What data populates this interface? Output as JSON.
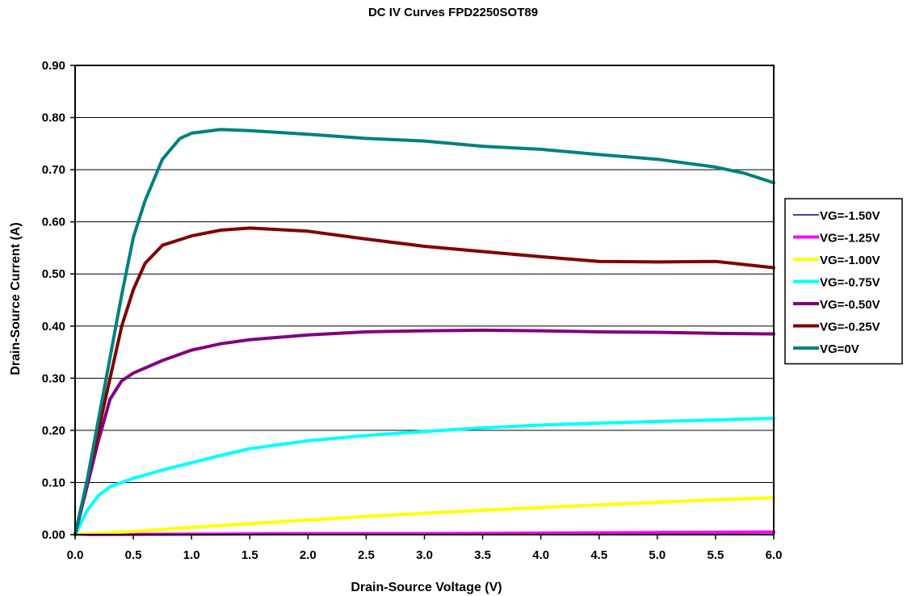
{
  "chart_data": {
    "type": "line",
    "title": "DC IV Curves FPD2250SOT89",
    "xlabel": "Drain-Source Voltage (V)",
    "ylabel": "Drain-Source Current (A)",
    "xlim": [
      0,
      6
    ],
    "ylim": [
      0,
      0.9
    ],
    "x_ticks": [
      "0.0",
      "0.5",
      "1.0",
      "1.5",
      "2.0",
      "2.5",
      "3.0",
      "3.5",
      "4.0",
      "4.5",
      "5.0",
      "5.5",
      "6.0"
    ],
    "y_ticks": [
      "0.00",
      "0.10",
      "0.20",
      "0.30",
      "0.40",
      "0.50",
      "0.60",
      "0.70",
      "0.80",
      "0.90"
    ],
    "grid": "horizontal",
    "legend_position": "right",
    "series": [
      {
        "name": "VG=-1.50V",
        "color": "#000080",
        "points": [
          [
            0,
            0
          ],
          [
            6,
            0
          ]
        ]
      },
      {
        "name": "VG=-1.25V",
        "color": "#ff00ff",
        "points": [
          [
            0,
            0
          ],
          [
            1,
            0.001
          ],
          [
            2,
            0.002
          ],
          [
            3,
            0.002
          ],
          [
            4,
            0.003
          ],
          [
            5,
            0.004
          ],
          [
            6,
            0.005
          ]
        ]
      },
      {
        "name": "VG=-1.00V",
        "color": "#ffff00",
        "points": [
          [
            0,
            0
          ],
          [
            0.5,
            0.006
          ],
          [
            1,
            0.014
          ],
          [
            1.5,
            0.021
          ],
          [
            2,
            0.028
          ],
          [
            2.5,
            0.035
          ],
          [
            3,
            0.041
          ],
          [
            3.5,
            0.047
          ],
          [
            4,
            0.052
          ],
          [
            4.5,
            0.057
          ],
          [
            5,
            0.062
          ],
          [
            5.5,
            0.067
          ],
          [
            6,
            0.071
          ]
        ]
      },
      {
        "name": "VG=-0.75V",
        "color": "#00ffff",
        "points": [
          [
            0,
            0
          ],
          [
            0.1,
            0.045
          ],
          [
            0.2,
            0.075
          ],
          [
            0.3,
            0.092
          ],
          [
            0.5,
            0.108
          ],
          [
            0.75,
            0.124
          ],
          [
            1,
            0.138
          ],
          [
            1.25,
            0.152
          ],
          [
            1.5,
            0.165
          ],
          [
            2,
            0.18
          ],
          [
            2.5,
            0.19
          ],
          [
            3,
            0.198
          ],
          [
            3.5,
            0.205
          ],
          [
            4,
            0.21
          ],
          [
            4.5,
            0.214
          ],
          [
            5,
            0.217
          ],
          [
            5.5,
            0.22
          ],
          [
            6,
            0.223
          ]
        ]
      },
      {
        "name": "VG=-0.50V",
        "color": "#800080",
        "points": [
          [
            0,
            0
          ],
          [
            0.1,
            0.09
          ],
          [
            0.2,
            0.18
          ],
          [
            0.3,
            0.26
          ],
          [
            0.4,
            0.295
          ],
          [
            0.5,
            0.31
          ],
          [
            0.75,
            0.334
          ],
          [
            1,
            0.354
          ],
          [
            1.25,
            0.366
          ],
          [
            1.5,
            0.374
          ],
          [
            2,
            0.383
          ],
          [
            2.5,
            0.389
          ],
          [
            3,
            0.391
          ],
          [
            3.5,
            0.392
          ],
          [
            4,
            0.391
          ],
          [
            4.5,
            0.389
          ],
          [
            5,
            0.388
          ],
          [
            5.5,
            0.386
          ],
          [
            6,
            0.385
          ]
        ]
      },
      {
        "name": "VG=-0.25V",
        "color": "#800000",
        "points": [
          [
            0,
            0
          ],
          [
            0.1,
            0.1
          ],
          [
            0.2,
            0.2
          ],
          [
            0.3,
            0.3
          ],
          [
            0.4,
            0.4
          ],
          [
            0.5,
            0.47
          ],
          [
            0.6,
            0.52
          ],
          [
            0.75,
            0.555
          ],
          [
            1,
            0.573
          ],
          [
            1.25,
            0.584
          ],
          [
            1.5,
            0.588
          ],
          [
            2,
            0.582
          ],
          [
            2.5,
            0.567
          ],
          [
            3,
            0.553
          ],
          [
            3.5,
            0.543
          ],
          [
            4,
            0.533
          ],
          [
            4.5,
            0.524
          ],
          [
            5,
            0.523
          ],
          [
            5.5,
            0.524
          ],
          [
            6,
            0.512
          ]
        ]
      },
      {
        "name": "VG=0V",
        "color": "#008080",
        "points": [
          [
            0,
            0
          ],
          [
            0.1,
            0.1
          ],
          [
            0.2,
            0.22
          ],
          [
            0.3,
            0.34
          ],
          [
            0.4,
            0.46
          ],
          [
            0.5,
            0.57
          ],
          [
            0.6,
            0.64
          ],
          [
            0.75,
            0.72
          ],
          [
            0.9,
            0.76
          ],
          [
            1,
            0.77
          ],
          [
            1.25,
            0.777
          ],
          [
            1.5,
            0.775
          ],
          [
            2,
            0.768
          ],
          [
            2.5,
            0.76
          ],
          [
            3,
            0.755
          ],
          [
            3.5,
            0.745
          ],
          [
            4,
            0.739
          ],
          [
            4.5,
            0.729
          ],
          [
            5,
            0.72
          ],
          [
            5.5,
            0.705
          ],
          [
            5.75,
            0.693
          ],
          [
            6,
            0.675
          ]
        ]
      }
    ]
  }
}
